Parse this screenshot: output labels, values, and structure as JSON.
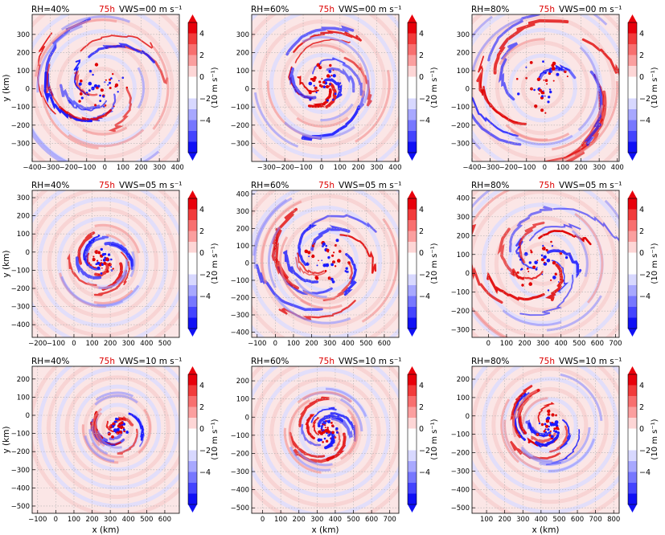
{
  "figure": {
    "time_label": "75h",
    "xlabel": "x (km)",
    "ylabel": "y (km)",
    "colorbar": {
      "label": "(10 m s⁻¹)",
      "ticks": [
        "4",
        "2",
        "0",
        "−2",
        "−4"
      ],
      "colors": [
        "#e8000b",
        "#f23b3b",
        "#f86f6f",
        "#fb9f9f",
        "#fdd6d6",
        "#ffffff",
        "#ffffff",
        "#d8d8ff",
        "#a8a8ff",
        "#7777ff",
        "#4444ff",
        "#1010f5"
      ]
    },
    "colors": {
      "positive": "#e00000",
      "negative": "#1a1aff",
      "grid": "#b0b0b0",
      "time_label": "#dd0000"
    }
  },
  "chart_data": [
    {
      "type": "heatmap",
      "rh_label": "RH=40%",
      "vws_label": "VWS=00 m s⁻¹",
      "x_ticks": [
        "−400",
        "−300",
        "−200",
        "−100",
        "0",
        "100",
        "200",
        "300",
        "400"
      ],
      "y_ticks": [
        "−300",
        "−200",
        "−100",
        "0",
        "100",
        "200",
        "300"
      ],
      "xlim": [
        -400,
        410
      ],
      "ylim": [
        -400,
        410
      ],
      "ylabel": "y (km)",
      "xlabel": ""
    },
    {
      "type": "heatmap",
      "rh_label": "RH=60%",
      "vws_label": "VWS=00 m s⁻¹",
      "x_ticks": [
        "−300",
        "−200",
        "−100",
        "0",
        "100",
        "200",
        "300",
        "400"
      ],
      "y_ticks": [
        "−300",
        "−200",
        "−100",
        "0",
        "100",
        "200",
        "300"
      ],
      "xlim": [
        -380,
        420
      ],
      "ylim": [
        -400,
        410
      ],
      "ylabel": "",
      "xlabel": ""
    },
    {
      "type": "heatmap",
      "rh_label": "RH=80%",
      "vws_label": "VWS=00 m s⁻¹",
      "x_ticks": [
        "−400",
        "−300",
        "−200",
        "−100",
        "0",
        "100",
        "200",
        "300",
        "400"
      ],
      "y_ticks": [
        "−300",
        "−200",
        "−100",
        "0",
        "100",
        "200",
        "300"
      ],
      "xlim": [
        -400,
        410
      ],
      "ylim": [
        -400,
        410
      ],
      "ylabel": "",
      "xlabel": ""
    },
    {
      "type": "heatmap",
      "rh_label": "RH=40%",
      "vws_label": "VWS=05 m s⁻¹",
      "x_ticks": [
        "−200",
        "−100",
        "0",
        "100",
        "200",
        "300",
        "400",
        "500"
      ],
      "y_ticks": [
        "−400",
        "−300",
        "−200",
        "−100",
        "0",
        "100",
        "200",
        "300"
      ],
      "xlim": [
        -230,
        580
      ],
      "ylim": [
        -470,
        340
      ],
      "ylabel": "y (km)",
      "xlabel": ""
    },
    {
      "type": "heatmap",
      "rh_label": "RH=60%",
      "vws_label": "VWS=05 m s⁻¹",
      "x_ticks": [
        "−100",
        "0",
        "100",
        "200",
        "300",
        "400",
        "500",
        "600"
      ],
      "y_ticks": [
        "−400",
        "−300",
        "−200",
        "−100",
        "0",
        "100",
        "200",
        "300",
        "400"
      ],
      "xlim": [
        -130,
        680
      ],
      "ylim": [
        -430,
        420
      ],
      "ylabel": "",
      "xlabel": ""
    },
    {
      "type": "heatmap",
      "rh_label": "RH=80%",
      "vws_label": "VWS=05 m s⁻¹",
      "x_ticks": [
        "0",
        "100",
        "200",
        "300",
        "400",
        "500",
        "600",
        "700"
      ],
      "y_ticks": [
        "−300",
        "−200",
        "−100",
        "0",
        "100",
        "200",
        "300",
        "400"
      ],
      "xlim": [
        -90,
        720
      ],
      "ylim": [
        -340,
        440
      ],
      "ylabel": "",
      "xlabel": ""
    },
    {
      "type": "heatmap",
      "rh_label": "RH=40%",
      "vws_label": "VWS=10 m s⁻¹",
      "x_ticks": [
        "−100",
        "0",
        "100",
        "200",
        "300",
        "400",
        "500",
        "600"
      ],
      "y_ticks": [
        "−500",
        "−400",
        "−300",
        "−200",
        "−100",
        "0",
        "100",
        "200"
      ],
      "xlim": [
        -130,
        680
      ],
      "ylim": [
        -540,
        270
      ],
      "ylabel": "y (km)",
      "xlabel": "x (km)"
    },
    {
      "type": "heatmap",
      "rh_label": "RH=60%",
      "vws_label": "VWS=10 m s⁻¹",
      "x_ticks": [
        "0",
        "100",
        "200",
        "300",
        "400",
        "500",
        "600",
        "700"
      ],
      "y_ticks": [
        "−500",
        "−400",
        "−300",
        "−200",
        "−100",
        "0",
        "100",
        "200"
      ],
      "xlim": [
        -60,
        750
      ],
      "ylim": [
        -530,
        280
      ],
      "ylabel": "",
      "xlabel": "x (km)"
    },
    {
      "type": "heatmap",
      "rh_label": "RH=80%",
      "vws_label": "VWS=10 m s⁻¹",
      "x_ticks": [
        "100",
        "200",
        "300",
        "400",
        "500",
        "600",
        "700",
        "800"
      ],
      "y_ticks": [
        "−500",
        "−400",
        "−300",
        "−200",
        "−100",
        "0",
        "100",
        "200"
      ],
      "xlim": [
        20,
        830
      ],
      "ylim": [
        -530,
        270
      ],
      "ylabel": "",
      "xlabel": "x (km)"
    }
  ]
}
